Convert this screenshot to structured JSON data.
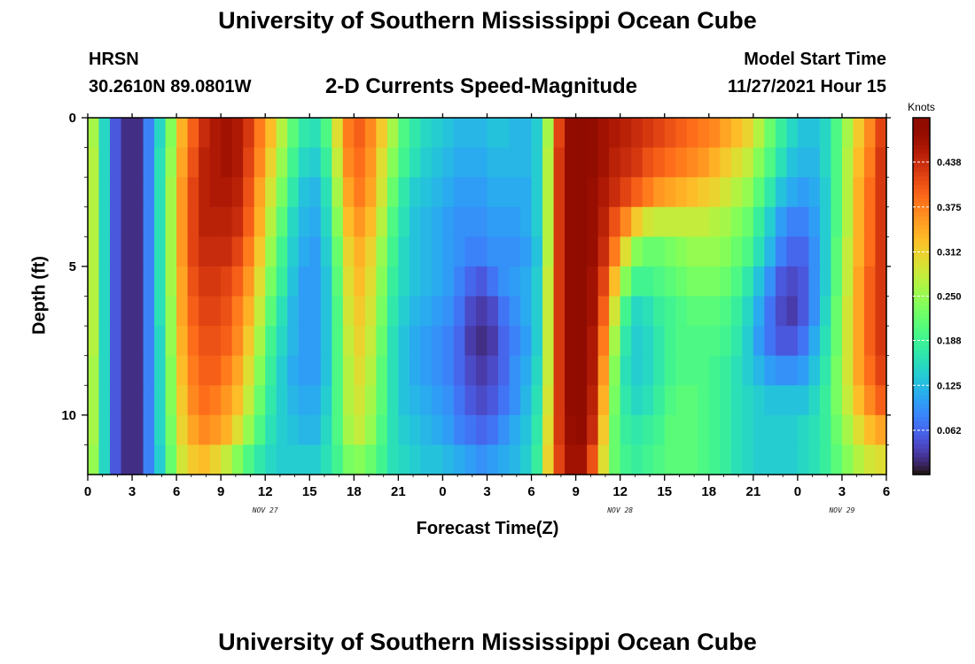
{
  "page": {
    "title": "University of Southern Mississippi Ocean Cube",
    "station_name": "HRSN",
    "coordinates": "30.2610N  89.0801W",
    "plot_title": "2-D Currents Speed-Magnitude",
    "model_start_label": "Model Start Time",
    "model_start_value": "11/27/2021 Hour 15",
    "footer_title": "University of Southern Mississippi Ocean Cube"
  },
  "chart_data": {
    "type": "heatmap",
    "title": "2-D Currents Speed-Magnitude",
    "xlabel": "Forecast Time(Z)",
    "ylabel": "Depth (ft)",
    "x_tick_labels": [
      "0",
      "3",
      "6",
      "9",
      "12",
      "15",
      "18",
      "21",
      "0",
      "3",
      "6",
      "9",
      "12",
      "15",
      "18",
      "21",
      "0",
      "3",
      "6"
    ],
    "x_date_labels": [
      {
        "text": "NOV 27",
        "at_hour": 12
      },
      {
        "text": "NOV 28",
        "at_hour": 36
      },
      {
        "text": "NOV 29",
        "at_hour": 51
      }
    ],
    "xlim_hours": [
      0,
      54
    ],
    "y_tick_labels": [
      "0",
      "5",
      "10"
    ],
    "y_ticks": [
      0,
      5,
      10
    ],
    "ylim": [
      0,
      12
    ],
    "y_inverted": true,
    "colorbar": {
      "label": "Knots",
      "range": [
        0,
        0.5
      ],
      "ticks": [
        0.062,
        0.125,
        0.188,
        0.25,
        0.312,
        0.375,
        0.438
      ],
      "tick_labels": [
        "0.062",
        "0.125",
        "0.188",
        "0.250",
        "0.312",
        "0.375",
        "0.438"
      ],
      "colormap": "turbo"
    },
    "time_hours": [
      0,
      0.75,
      1.5,
      2.25,
      3,
      3.75,
      4.5,
      5.25,
      6,
      6.75,
      7.5,
      8.25,
      9,
      9.75,
      10.5,
      11.25,
      12,
      12.75,
      13.5,
      14.25,
      15,
      15.75,
      16.5,
      17.25,
      18,
      18.75,
      19.5,
      20.25,
      21,
      21.75,
      22.5,
      23.25,
      24,
      24.75,
      25.5,
      26.25,
      27,
      27.75,
      28.5,
      29.25,
      30,
      30.75,
      31.5,
      32.25,
      33,
      33.75,
      34.5,
      35.25,
      36,
      36.75,
      37.5,
      38.25,
      39,
      39.75,
      40.5,
      41.25,
      42,
      42.75,
      43.5,
      44.25,
      45,
      45.75,
      46.5,
      47.25,
      48,
      48.75,
      49.5,
      50.25,
      51,
      51.75,
      52.5,
      53.25
    ],
    "depth_ft": [
      0,
      1,
      2,
      3,
      4,
      5,
      6,
      7,
      8,
      9,
      10,
      11
    ],
    "speed_knots": [
      [
        0.26,
        0.15,
        0.05,
        0.02,
        0.02,
        0.08,
        0.15,
        0.24,
        0.34,
        0.4,
        0.44,
        0.46,
        0.47,
        0.46,
        0.43,
        0.38,
        0.33,
        0.27,
        0.21,
        0.17,
        0.16,
        0.2,
        0.3,
        0.38,
        0.4,
        0.37,
        0.32,
        0.26,
        0.2,
        0.17,
        0.15,
        0.14,
        0.13,
        0.12,
        0.12,
        0.12,
        0.13,
        0.13,
        0.12,
        0.12,
        0.14,
        0.26,
        0.42,
        0.49,
        0.5,
        0.49,
        0.47,
        0.46,
        0.45,
        0.44,
        0.43,
        0.42,
        0.41,
        0.4,
        0.39,
        0.38,
        0.37,
        0.35,
        0.33,
        0.31,
        0.27,
        0.22,
        0.18,
        0.15,
        0.13,
        0.13,
        0.15,
        0.2,
        0.26,
        0.32,
        0.37,
        0.42
      ],
      [
        0.27,
        0.15,
        0.05,
        0.02,
        0.02,
        0.08,
        0.16,
        0.25,
        0.35,
        0.41,
        0.45,
        0.46,
        0.47,
        0.46,
        0.42,
        0.37,
        0.31,
        0.25,
        0.19,
        0.15,
        0.14,
        0.18,
        0.28,
        0.37,
        0.39,
        0.36,
        0.3,
        0.24,
        0.19,
        0.16,
        0.14,
        0.13,
        0.12,
        0.11,
        0.11,
        0.11,
        0.12,
        0.12,
        0.12,
        0.12,
        0.14,
        0.27,
        0.43,
        0.49,
        0.5,
        0.49,
        0.47,
        0.45,
        0.44,
        0.43,
        0.41,
        0.4,
        0.39,
        0.38,
        0.37,
        0.36,
        0.34,
        0.32,
        0.3,
        0.28,
        0.24,
        0.2,
        0.16,
        0.13,
        0.12,
        0.12,
        0.15,
        0.2,
        0.27,
        0.33,
        0.38,
        0.43
      ],
      [
        0.27,
        0.15,
        0.05,
        0.02,
        0.02,
        0.08,
        0.16,
        0.26,
        0.36,
        0.42,
        0.45,
        0.46,
        0.46,
        0.45,
        0.41,
        0.35,
        0.29,
        0.23,
        0.17,
        0.13,
        0.12,
        0.16,
        0.26,
        0.35,
        0.38,
        0.35,
        0.29,
        0.22,
        0.17,
        0.14,
        0.13,
        0.12,
        0.11,
        0.1,
        0.1,
        0.1,
        0.11,
        0.11,
        0.11,
        0.11,
        0.14,
        0.27,
        0.43,
        0.49,
        0.5,
        0.48,
        0.46,
        0.44,
        0.42,
        0.4,
        0.38,
        0.36,
        0.35,
        0.34,
        0.33,
        0.32,
        0.31,
        0.29,
        0.27,
        0.25,
        0.21,
        0.17,
        0.13,
        0.11,
        0.1,
        0.11,
        0.14,
        0.2,
        0.27,
        0.34,
        0.39,
        0.43
      ],
      [
        0.27,
        0.15,
        0.05,
        0.02,
        0.02,
        0.08,
        0.16,
        0.26,
        0.36,
        0.42,
        0.45,
        0.45,
        0.45,
        0.44,
        0.4,
        0.34,
        0.27,
        0.21,
        0.15,
        0.12,
        0.11,
        0.15,
        0.24,
        0.33,
        0.36,
        0.33,
        0.27,
        0.2,
        0.16,
        0.13,
        0.12,
        0.11,
        0.1,
        0.09,
        0.09,
        0.09,
        0.1,
        0.1,
        0.1,
        0.11,
        0.14,
        0.27,
        0.43,
        0.49,
        0.5,
        0.48,
        0.45,
        0.41,
        0.37,
        0.32,
        0.29,
        0.28,
        0.28,
        0.28,
        0.28,
        0.28,
        0.27,
        0.26,
        0.24,
        0.22,
        0.18,
        0.14,
        0.1,
        0.08,
        0.08,
        0.1,
        0.14,
        0.2,
        0.27,
        0.34,
        0.39,
        0.43
      ],
      [
        0.27,
        0.15,
        0.05,
        0.02,
        0.02,
        0.08,
        0.16,
        0.26,
        0.36,
        0.42,
        0.44,
        0.44,
        0.44,
        0.42,
        0.38,
        0.32,
        0.25,
        0.19,
        0.14,
        0.11,
        0.1,
        0.14,
        0.22,
        0.31,
        0.34,
        0.31,
        0.25,
        0.19,
        0.15,
        0.13,
        0.12,
        0.11,
        0.1,
        0.09,
        0.08,
        0.08,
        0.09,
        0.09,
        0.09,
        0.1,
        0.13,
        0.27,
        0.43,
        0.49,
        0.5,
        0.48,
        0.44,
        0.38,
        0.3,
        0.24,
        0.22,
        0.22,
        0.23,
        0.24,
        0.25,
        0.25,
        0.25,
        0.24,
        0.22,
        0.2,
        0.16,
        0.12,
        0.08,
        0.06,
        0.06,
        0.09,
        0.14,
        0.21,
        0.28,
        0.34,
        0.39,
        0.43
      ],
      [
        0.27,
        0.15,
        0.05,
        0.02,
        0.02,
        0.08,
        0.16,
        0.26,
        0.35,
        0.41,
        0.43,
        0.43,
        0.42,
        0.4,
        0.36,
        0.3,
        0.23,
        0.18,
        0.13,
        0.1,
        0.1,
        0.13,
        0.21,
        0.3,
        0.33,
        0.3,
        0.24,
        0.18,
        0.15,
        0.13,
        0.12,
        0.11,
        0.1,
        0.08,
        0.06,
        0.05,
        0.07,
        0.09,
        0.1,
        0.11,
        0.14,
        0.28,
        0.43,
        0.49,
        0.5,
        0.47,
        0.42,
        0.33,
        0.24,
        0.19,
        0.19,
        0.2,
        0.21,
        0.22,
        0.23,
        0.23,
        0.23,
        0.22,
        0.2,
        0.17,
        0.13,
        0.09,
        0.05,
        0.04,
        0.05,
        0.09,
        0.14,
        0.21,
        0.28,
        0.35,
        0.4,
        0.43
      ],
      [
        0.27,
        0.15,
        0.05,
        0.02,
        0.02,
        0.08,
        0.16,
        0.25,
        0.35,
        0.4,
        0.42,
        0.42,
        0.41,
        0.38,
        0.34,
        0.28,
        0.21,
        0.16,
        0.12,
        0.1,
        0.1,
        0.13,
        0.2,
        0.29,
        0.32,
        0.29,
        0.23,
        0.17,
        0.14,
        0.12,
        0.11,
        0.1,
        0.09,
        0.07,
        0.04,
        0.03,
        0.04,
        0.07,
        0.09,
        0.11,
        0.14,
        0.28,
        0.43,
        0.49,
        0.5,
        0.47,
        0.4,
        0.29,
        0.19,
        0.15,
        0.16,
        0.18,
        0.19,
        0.2,
        0.21,
        0.21,
        0.21,
        0.2,
        0.18,
        0.15,
        0.11,
        0.07,
        0.04,
        0.03,
        0.05,
        0.09,
        0.15,
        0.22,
        0.29,
        0.35,
        0.4,
        0.43
      ],
      [
        0.27,
        0.15,
        0.05,
        0.02,
        0.02,
        0.08,
        0.15,
        0.25,
        0.34,
        0.39,
        0.41,
        0.41,
        0.4,
        0.37,
        0.32,
        0.26,
        0.19,
        0.15,
        0.12,
        0.1,
        0.1,
        0.13,
        0.2,
        0.28,
        0.31,
        0.28,
        0.22,
        0.16,
        0.13,
        0.11,
        0.1,
        0.09,
        0.08,
        0.06,
        0.03,
        0.02,
        0.03,
        0.06,
        0.08,
        0.1,
        0.14,
        0.28,
        0.43,
        0.49,
        0.5,
        0.46,
        0.38,
        0.26,
        0.17,
        0.14,
        0.15,
        0.17,
        0.19,
        0.2,
        0.2,
        0.2,
        0.2,
        0.19,
        0.17,
        0.14,
        0.1,
        0.07,
        0.05,
        0.05,
        0.07,
        0.11,
        0.16,
        0.22,
        0.29,
        0.35,
        0.4,
        0.43
      ],
      [
        0.26,
        0.15,
        0.05,
        0.02,
        0.02,
        0.08,
        0.15,
        0.24,
        0.33,
        0.38,
        0.4,
        0.4,
        0.38,
        0.35,
        0.3,
        0.24,
        0.18,
        0.14,
        0.11,
        0.1,
        0.1,
        0.13,
        0.2,
        0.27,
        0.3,
        0.27,
        0.21,
        0.16,
        0.13,
        0.11,
        0.1,
        0.09,
        0.08,
        0.06,
        0.04,
        0.03,
        0.04,
        0.06,
        0.09,
        0.11,
        0.15,
        0.28,
        0.43,
        0.49,
        0.5,
        0.46,
        0.36,
        0.24,
        0.16,
        0.14,
        0.15,
        0.17,
        0.19,
        0.2,
        0.2,
        0.2,
        0.19,
        0.18,
        0.16,
        0.14,
        0.12,
        0.1,
        0.09,
        0.09,
        0.1,
        0.13,
        0.17,
        0.23,
        0.29,
        0.35,
        0.39,
        0.42
      ],
      [
        0.26,
        0.15,
        0.05,
        0.02,
        0.02,
        0.08,
        0.15,
        0.24,
        0.32,
        0.37,
        0.39,
        0.38,
        0.36,
        0.33,
        0.28,
        0.22,
        0.17,
        0.14,
        0.12,
        0.11,
        0.11,
        0.14,
        0.2,
        0.27,
        0.29,
        0.26,
        0.21,
        0.16,
        0.13,
        0.12,
        0.11,
        0.1,
        0.09,
        0.07,
        0.05,
        0.04,
        0.05,
        0.07,
        0.09,
        0.12,
        0.16,
        0.29,
        0.43,
        0.49,
        0.5,
        0.45,
        0.34,
        0.23,
        0.17,
        0.15,
        0.16,
        0.18,
        0.2,
        0.21,
        0.21,
        0.2,
        0.19,
        0.18,
        0.16,
        0.15,
        0.14,
        0.13,
        0.13,
        0.13,
        0.13,
        0.15,
        0.18,
        0.23,
        0.28,
        0.33,
        0.37,
        0.4
      ],
      [
        0.26,
        0.15,
        0.05,
        0.02,
        0.02,
        0.08,
        0.15,
        0.23,
        0.31,
        0.35,
        0.37,
        0.36,
        0.34,
        0.3,
        0.25,
        0.2,
        0.16,
        0.14,
        0.13,
        0.12,
        0.12,
        0.15,
        0.2,
        0.26,
        0.28,
        0.25,
        0.2,
        0.16,
        0.14,
        0.13,
        0.12,
        0.11,
        0.1,
        0.08,
        0.07,
        0.06,
        0.07,
        0.09,
        0.11,
        0.13,
        0.17,
        0.3,
        0.43,
        0.48,
        0.49,
        0.44,
        0.32,
        0.22,
        0.18,
        0.17,
        0.18,
        0.19,
        0.21,
        0.21,
        0.21,
        0.2,
        0.19,
        0.18,
        0.16,
        0.15,
        0.14,
        0.14,
        0.14,
        0.14,
        0.15,
        0.16,
        0.18,
        0.22,
        0.26,
        0.3,
        0.33,
        0.35
      ],
      [
        0.25,
        0.15,
        0.05,
        0.02,
        0.02,
        0.08,
        0.14,
        0.22,
        0.29,
        0.32,
        0.33,
        0.31,
        0.28,
        0.24,
        0.2,
        0.17,
        0.15,
        0.14,
        0.14,
        0.14,
        0.14,
        0.16,
        0.19,
        0.23,
        0.24,
        0.22,
        0.19,
        0.16,
        0.15,
        0.14,
        0.13,
        0.13,
        0.12,
        0.11,
        0.1,
        0.09,
        0.1,
        0.11,
        0.12,
        0.14,
        0.18,
        0.31,
        0.42,
        0.47,
        0.47,
        0.41,
        0.3,
        0.22,
        0.19,
        0.18,
        0.19,
        0.2,
        0.21,
        0.21,
        0.21,
        0.2,
        0.19,
        0.18,
        0.16,
        0.15,
        0.14,
        0.14,
        0.14,
        0.14,
        0.15,
        0.16,
        0.18,
        0.21,
        0.24,
        0.27,
        0.29,
        0.3
      ]
    ]
  }
}
